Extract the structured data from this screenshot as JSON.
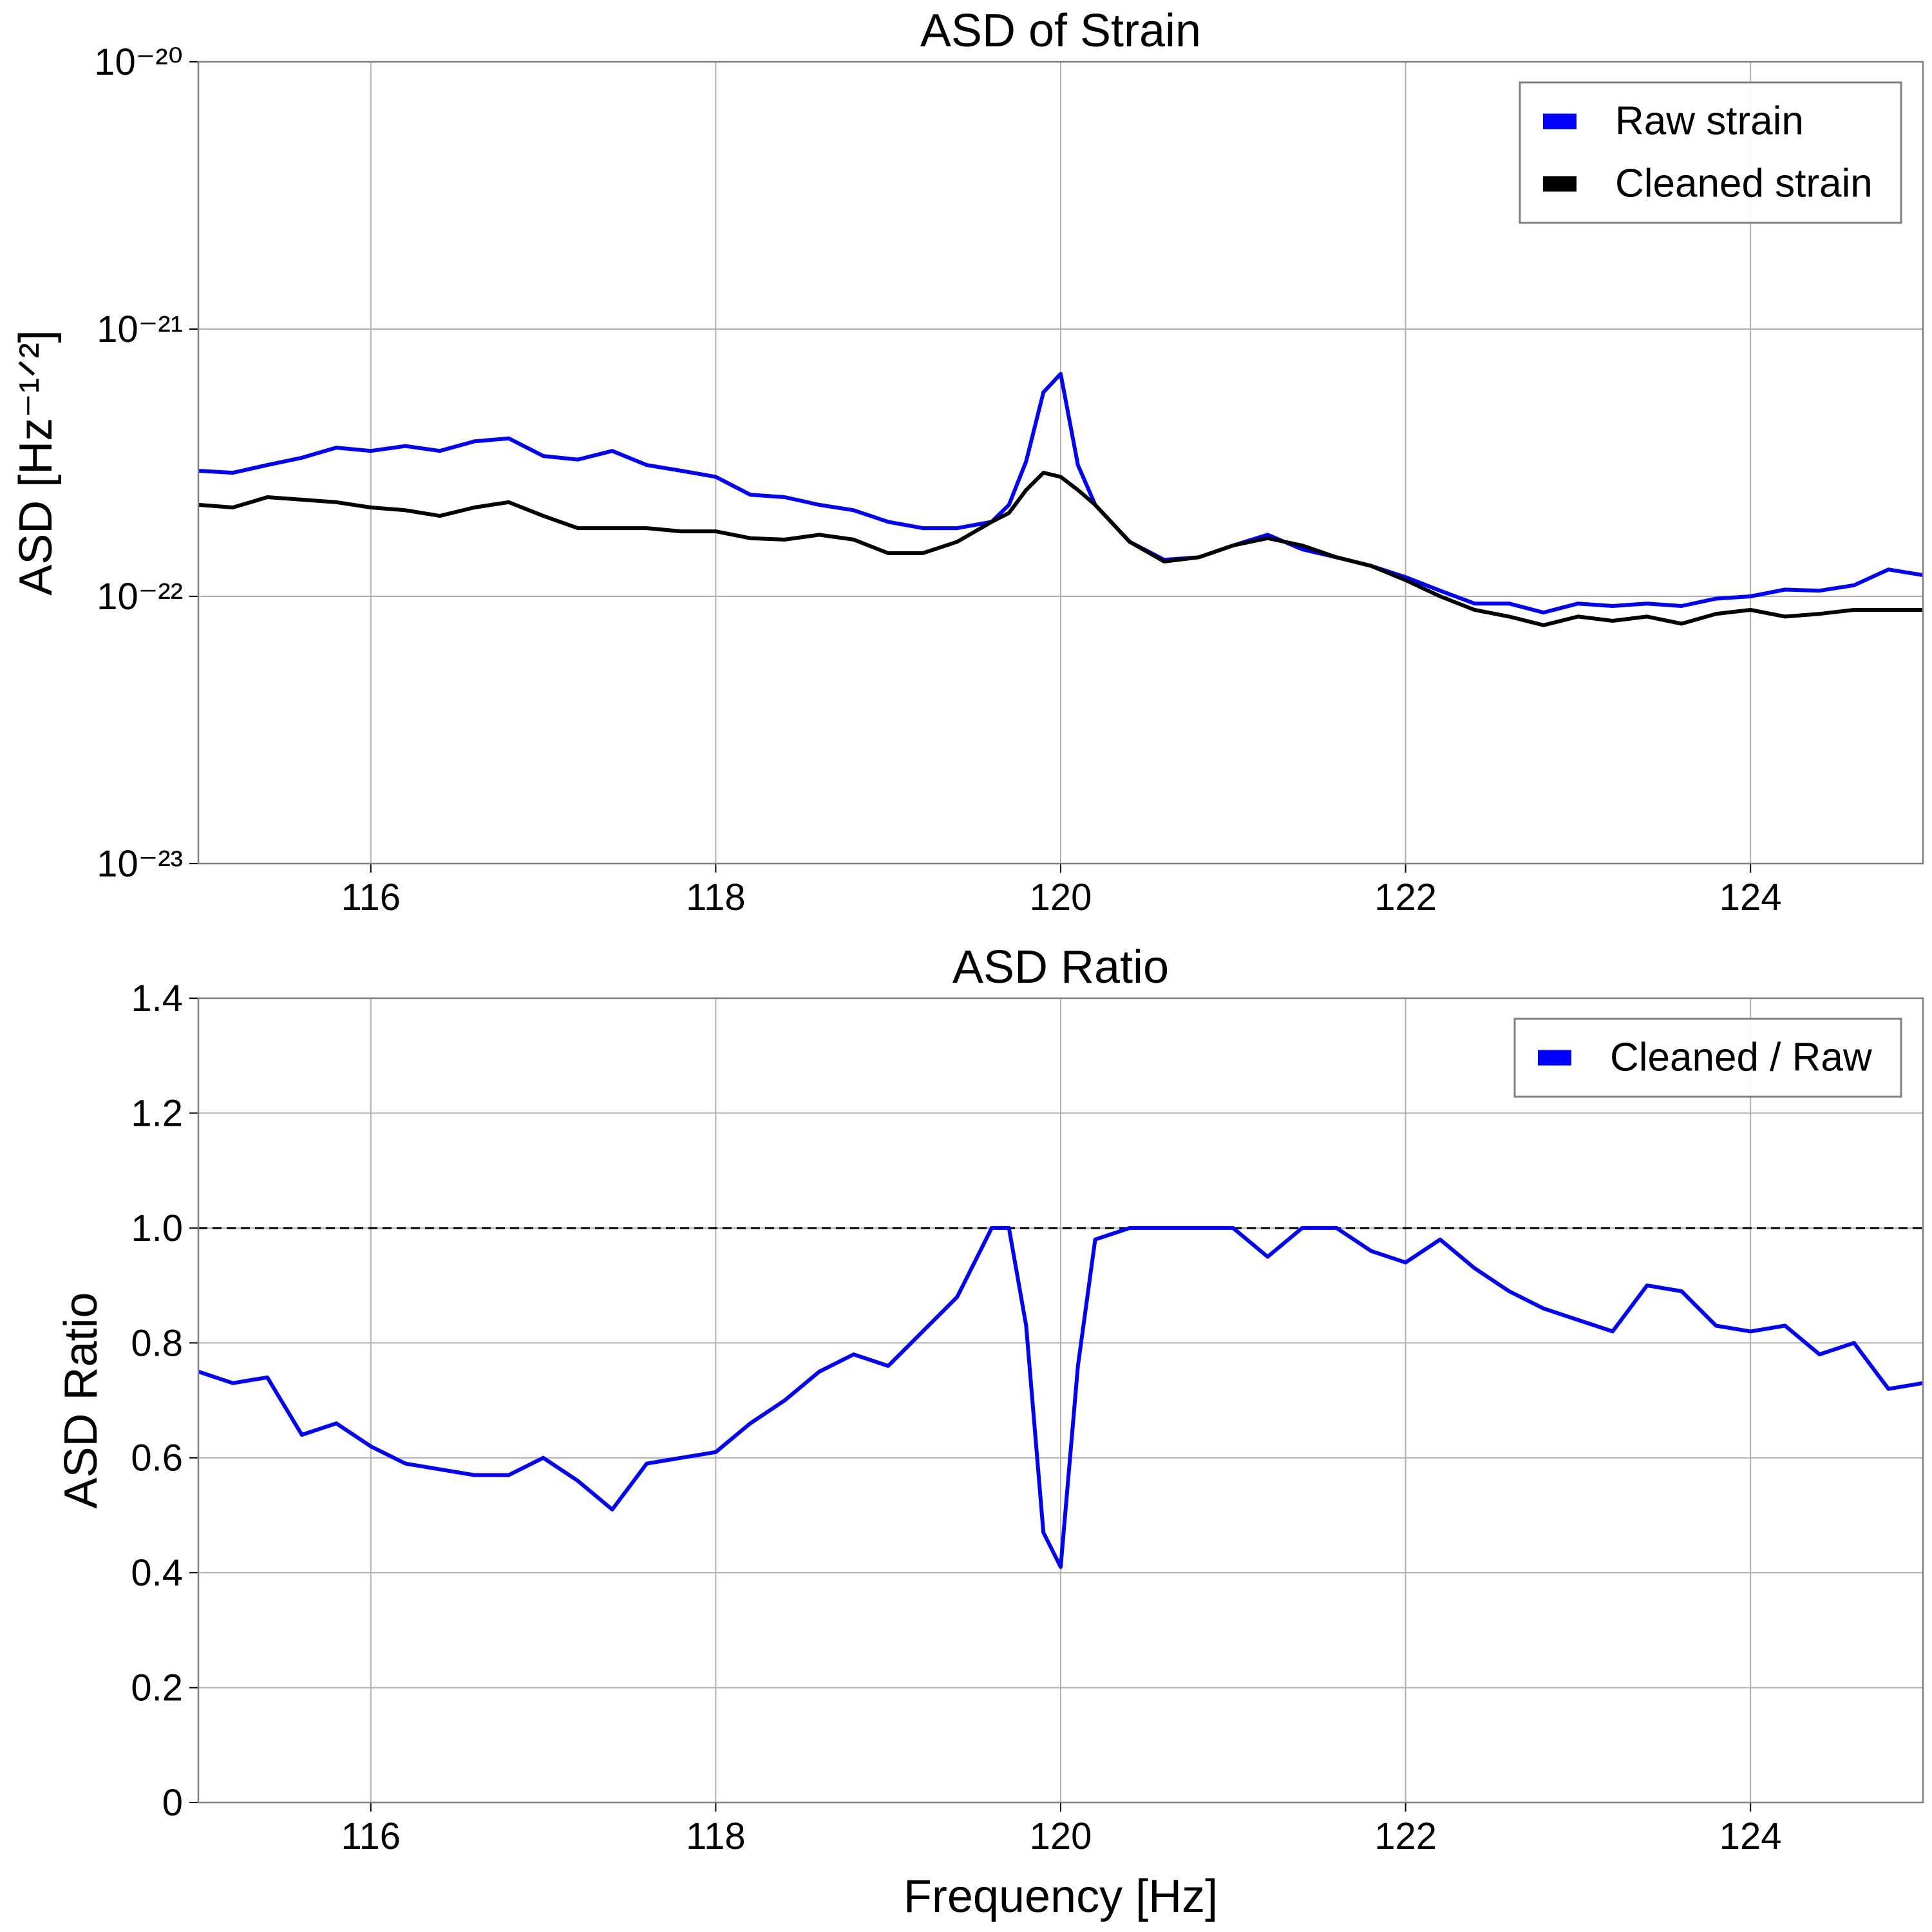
{
  "chart_data": [
    {
      "type": "line",
      "title": "ASD of Strain",
      "ylabel": "ASD [Hz⁻¹ᐟ²]",
      "log_y": true,
      "grid": true,
      "legend": "upper right",
      "x": [
        115.0,
        115.2,
        115.4,
        115.6,
        115.8,
        116.0,
        116.2,
        116.4,
        116.6,
        116.8,
        117.0,
        117.2,
        117.4,
        117.6,
        117.8,
        118.0,
        118.2,
        118.4,
        118.6,
        118.8,
        119.0,
        119.2,
        119.4,
        119.6,
        119.7,
        119.8,
        119.9,
        120.0,
        120.1,
        120.2,
        120.4,
        120.6,
        120.8,
        121.0,
        121.2,
        121.4,
        121.6,
        121.8,
        122.0,
        122.2,
        122.4,
        122.6,
        122.8,
        123.0,
        123.2,
        123.4,
        123.6,
        123.8,
        124.0,
        124.2,
        124.4,
        124.6,
        124.8,
        125.0
      ],
      "series": [
        {
          "name": "Raw strain",
          "color": "#0000ff",
          "values": [
            2.95e-22,
            2.9e-22,
            3.1e-22,
            3.3e-22,
            3.6e-22,
            3.5e-22,
            3.65e-22,
            3.5e-22,
            3.8e-22,
            3.9e-22,
            3.35e-22,
            3.25e-22,
            3.5e-22,
            3.1e-22,
            2.95e-22,
            2.8e-22,
            2.4e-22,
            2.35e-22,
            2.2e-22,
            2.1e-22,
            1.9e-22,
            1.8e-22,
            1.8e-22,
            1.9e-22,
            2.2e-22,
            3.2e-22,
            5.8e-22,
            6.8e-22,
            3.1e-22,
            2.2e-22,
            1.6e-22,
            1.37e-22,
            1.4e-22,
            1.55e-22,
            1.7e-22,
            1.5e-22,
            1.4e-22,
            1.3e-22,
            1.18e-22,
            1.05e-22,
            9.4e-23,
            9.4e-23,
            8.7e-23,
            9.4e-23,
            9.2e-23,
            9.4e-23,
            9.2e-23,
            9.8e-23,
            1e-22,
            1.06e-22,
            1.05e-22,
            1.1e-22,
            1.26e-22,
            1.2e-22
          ]
        },
        {
          "name": "Cleaned strain",
          "color": "#000000",
          "values": [
            2.2e-22,
            2.15e-22,
            2.35e-22,
            2.3e-22,
            2.25e-22,
            2.15e-22,
            2.1e-22,
            2e-22,
            2.15e-22,
            2.25e-22,
            2e-22,
            1.8e-22,
            1.8e-22,
            1.8e-22,
            1.75e-22,
            1.75e-22,
            1.65e-22,
            1.63e-22,
            1.7e-22,
            1.63e-22,
            1.45e-22,
            1.45e-22,
            1.6e-22,
            1.9e-22,
            2.05e-22,
            2.5e-22,
            2.9e-22,
            2.8e-22,
            2.5e-22,
            2.2e-22,
            1.6e-22,
            1.35e-22,
            1.4e-22,
            1.55e-22,
            1.65e-22,
            1.55e-22,
            1.4e-22,
            1.3e-22,
            1.15e-22,
            1e-22,
            8.9e-23,
            8.4e-23,
            7.8e-23,
            8.4e-23,
            8.1e-23,
            8.4e-23,
            7.9e-23,
            8.6e-23,
            8.9e-23,
            8.4e-23,
            8.6e-23,
            8.9e-23,
            8.9e-23,
            8.9e-23
          ]
        }
      ],
      "xlim": [
        115,
        125
      ],
      "xticks": [
        116,
        118,
        120,
        122,
        124
      ],
      "ylim": [
        1e-23,
        1e-20
      ],
      "yticks": [
        {
          "value": 1e-23,
          "label": "10⁻²³"
        },
        {
          "value": 1e-22,
          "label": "10⁻²²"
        },
        {
          "value": 1e-21,
          "label": "10⁻²¹"
        },
        {
          "value": 1e-20,
          "label": "10⁻²⁰"
        }
      ]
    },
    {
      "type": "line",
      "title": "ASD Ratio",
      "xlabel": "Frequency [Hz]",
      "ylabel": "ASD Ratio",
      "grid": true,
      "legend": "upper right",
      "hline": 1,
      "hline_color": "#000000",
      "x": [
        115.0,
        115.2,
        115.4,
        115.6,
        115.8,
        116.0,
        116.2,
        116.4,
        116.6,
        116.8,
        117.0,
        117.2,
        117.4,
        117.6,
        117.8,
        118.0,
        118.2,
        118.4,
        118.6,
        118.8,
        119.0,
        119.2,
        119.4,
        119.6,
        119.7,
        119.8,
        119.9,
        120.0,
        120.1,
        120.2,
        120.4,
        120.6,
        120.8,
        121.0,
        121.2,
        121.4,
        121.6,
        121.8,
        122.0,
        122.2,
        122.4,
        122.6,
        122.8,
        123.0,
        123.2,
        123.4,
        123.6,
        123.8,
        124.0,
        124.2,
        124.4,
        124.6,
        124.8,
        125.0
      ],
      "series": [
        {
          "name": "Cleaned / Raw",
          "color": "#0000ff",
          "values": [
            0.75,
            0.73,
            0.74,
            0.64,
            0.66,
            0.62,
            0.59,
            0.58,
            0.57,
            0.57,
            0.6,
            0.56,
            0.51,
            0.59,
            0.6,
            0.61,
            0.66,
            0.7,
            0.75,
            0.78,
            0.76,
            0.82,
            0.88,
            1.0,
            1.0,
            0.83,
            0.47,
            0.41,
            0.76,
            0.98,
            1.0,
            1.0,
            1.0,
            1.0,
            0.95,
            1.0,
            1.0,
            0.96,
            0.94,
            0.98,
            0.93,
            0.89,
            0.86,
            0.84,
            0.82,
            0.9,
            0.89,
            0.83,
            0.82,
            0.83,
            0.78,
            0.8,
            0.72,
            0.73
          ]
        }
      ],
      "xlim": [
        115,
        125
      ],
      "xticks": [
        116,
        118,
        120,
        122,
        124
      ],
      "ylim": [
        0,
        1.4
      ],
      "yticks": [
        0.0,
        {
          "value": 0.2,
          "label": "0.2"
        },
        {
          "value": 0.4,
          "label": "0.4"
        },
        {
          "value": 0.6,
          "label": "0.6"
        },
        {
          "value": 0.8,
          "label": "0.8"
        },
        {
          "value": 1.0,
          "label": "1.0"
        },
        {
          "value": 1.2,
          "label": "1.2"
        },
        {
          "value": 1.4,
          "label": "1.4"
        }
      ]
    }
  ]
}
